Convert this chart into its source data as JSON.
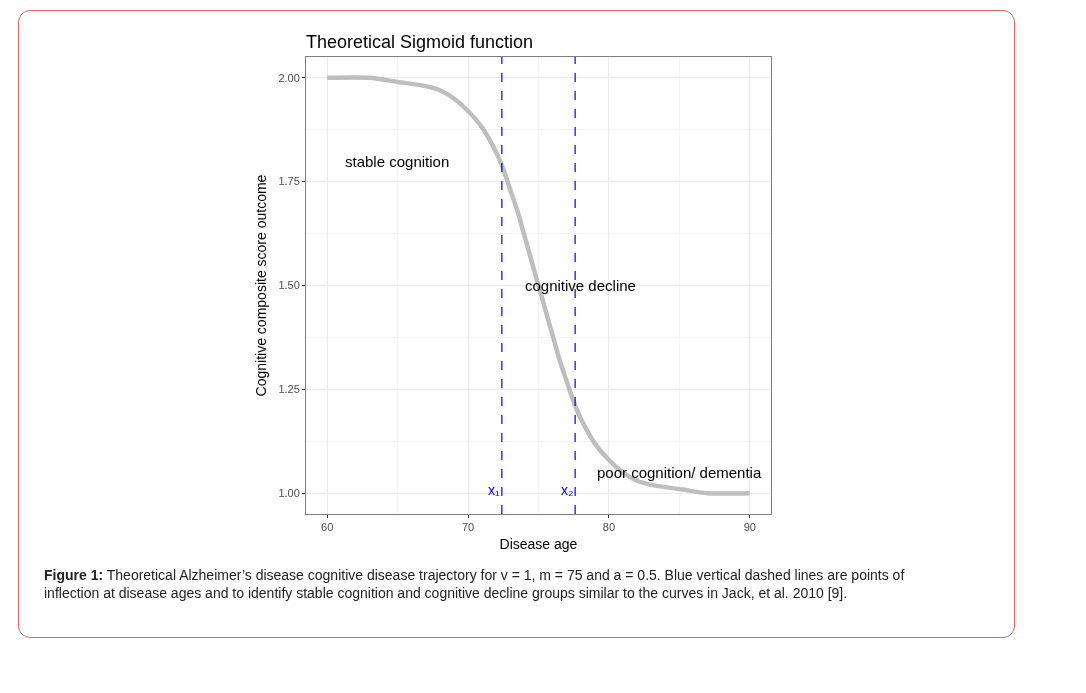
{
  "chart_data": {
    "type": "line",
    "title": "Theoretical Sigmoid function",
    "xlabel": "Disease age",
    "ylabel": "Cognitive composite score outcome",
    "x": [
      60,
      63,
      65,
      67,
      68,
      69,
      70,
      71,
      72,
      72.5,
      73,
      73.5,
      74,
      74.5,
      75,
      75.5,
      76,
      76.5,
      77,
      77.5,
      78,
      79,
      80,
      81,
      82,
      83,
      85,
      87,
      90
    ],
    "series": [
      {
        "color": "#bebebe",
        "values": [
          2.0,
          2.0,
          1.99,
          1.98,
          1.97,
          1.95,
          1.92,
          1.88,
          1.82,
          1.78,
          1.73,
          1.68,
          1.62,
          1.56,
          1.5,
          1.44,
          1.38,
          1.32,
          1.27,
          1.22,
          1.18,
          1.12,
          1.08,
          1.05,
          1.03,
          1.02,
          1.01,
          1.0,
          1.0
        ]
      }
    ],
    "xlim": [
      58.5,
      91.5
    ],
    "ylim": [
      0.95,
      2.05
    ],
    "xticks": [
      60,
      70,
      80,
      90
    ],
    "yticks": [
      {
        "value": 1,
        "label": "1.00"
      },
      {
        "value": 1.25,
        "label": "1.25"
      },
      {
        "value": 1.5,
        "label": "1.50"
      },
      {
        "value": 1.75,
        "label": "1.75"
      },
      {
        "value": 2,
        "label": "2.00"
      }
    ],
    "ref_lines": [
      {
        "axis": "x",
        "value": 72.4,
        "label": "x₁",
        "color": "#0000ff",
        "line_style": "dashed"
      },
      {
        "axis": "x",
        "value": 77.6,
        "label": "x₂",
        "color": "#0000ff",
        "line_style": "dashed"
      }
    ],
    "annotations": [
      "stable cognition",
      "cognitive decline",
      "poor cognition/ dementia",
      "Figure 1: Theoretical Alzheimer’s disease cognitive disease trajectory for v = 1, m = 75 and a = 0.5. Blue vertical dashed lines are points of inflection at disease ages and to identify stable cognition and cognitive decline groups similar to the curves in Jack, et al. 2010 [9]."
    ],
    "grid": true
  }
}
